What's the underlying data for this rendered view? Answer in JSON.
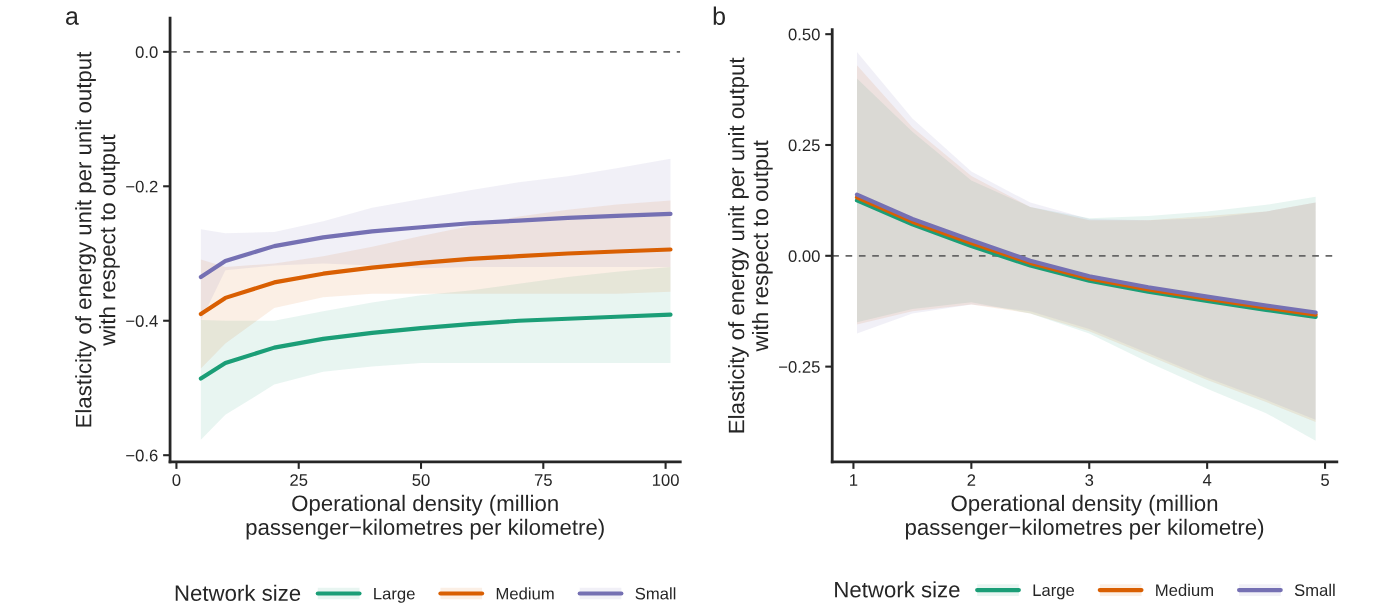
{
  "chart_data": [
    {
      "type": "line",
      "annotations": [
        "a"
      ],
      "xlabel": "Operational density (million\npassenger−kilometres per kilometre)",
      "ylabel": "Elasticity of energy unit per unit output\nwith respect to output",
      "x": [
        5,
        10,
        20,
        30,
        40,
        50,
        60,
        70,
        80,
        90,
        101
      ],
      "series": [
        {
          "name": "Large",
          "color": "#1b9e77",
          "values": [
            -0.486,
            -0.463,
            -0.44,
            -0.427,
            -0.418,
            -0.411,
            -0.405,
            -0.4,
            -0.397,
            -0.394,
            -0.391
          ],
          "lower": [
            -0.577,
            -0.54,
            -0.495,
            -0.476,
            -0.468,
            -0.463,
            -0.463,
            -0.463,
            -0.463,
            -0.463,
            -0.463
          ],
          "upper": [
            -0.399,
            -0.4,
            -0.4,
            -0.386,
            -0.373,
            -0.362,
            -0.355,
            -0.345,
            -0.335,
            -0.327,
            -0.32
          ]
        },
        {
          "name": "Medium",
          "color": "#d95f02",
          "values": [
            -0.39,
            -0.366,
            -0.343,
            -0.33,
            -0.321,
            -0.314,
            -0.308,
            -0.304,
            -0.3,
            -0.297,
            -0.294
          ],
          "lower": [
            -0.471,
            -0.434,
            -0.381,
            -0.365,
            -0.36,
            -0.36,
            -0.36,
            -0.36,
            -0.36,
            -0.36,
            -0.357
          ],
          "upper": [
            -0.309,
            -0.32,
            -0.315,
            -0.304,
            -0.29,
            -0.274,
            -0.259,
            -0.245,
            -0.235,
            -0.227,
            -0.221
          ]
        },
        {
          "name": "Small",
          "color": "#7570b3",
          "values": [
            -0.335,
            -0.311,
            -0.289,
            -0.276,
            -0.267,
            -0.261,
            -0.255,
            -0.251,
            -0.247,
            -0.244,
            -0.241
          ],
          "lower": [
            -0.4,
            -0.325,
            -0.318,
            -0.315,
            -0.318,
            -0.322,
            -0.32,
            -0.32,
            -0.32,
            -0.32,
            -0.32
          ],
          "upper": [
            -0.264,
            -0.27,
            -0.268,
            -0.252,
            -0.232,
            -0.219,
            -0.206,
            -0.194,
            -0.185,
            -0.173,
            -0.159
          ]
        }
      ],
      "xlim": [
        -1.3,
        103
      ],
      "ylim": [
        -0.61,
        0.05
      ],
      "xticks": [
        0,
        25,
        50,
        75,
        100
      ],
      "yticks": [
        {
          "value": 0,
          "label": "0.0"
        },
        {
          "value": -0.2,
          "label": "−0.2"
        },
        {
          "value": -0.4,
          "label": "−0.4"
        },
        {
          "value": -0.6,
          "label": "−0.6"
        }
      ],
      "ref_lines": [
        {
          "axis": "y",
          "value": 0,
          "color": "#666666",
          "line_style": "dashed"
        }
      ],
      "legend": "bottom",
      "legend_title": "Network size"
    },
    {
      "type": "line",
      "annotations": [
        "b"
      ],
      "xlabel": "Operational density (million\npassenger−kilometres per kilometre)",
      "ylabel": "Elasticity of energy unit per unit output\nwith respect to output",
      "x": [
        1.03,
        1.5,
        2,
        2.5,
        3,
        3.5,
        4,
        4.5,
        4.92
      ],
      "series": [
        {
          "name": "Large",
          "color": "#1b9e77",
          "values": [
            0.125,
            0.071,
            0.022,
            -0.022,
            -0.056,
            -0.081,
            -0.102,
            -0.122,
            -0.138
          ],
          "lower": [
            -0.15,
            -0.12,
            -0.105,
            -0.13,
            -0.175,
            -0.24,
            -0.3,
            -0.355,
            -0.417
          ],
          "upper": [
            0.4,
            0.28,
            0.17,
            0.11,
            0.085,
            0.09,
            0.1,
            0.115,
            0.133
          ]
        },
        {
          "name": "Medium",
          "color": "#d95f02",
          "values": [
            0.132,
            0.077,
            0.029,
            -0.016,
            -0.051,
            -0.076,
            -0.097,
            -0.117,
            -0.133
          ],
          "lower": [
            -0.155,
            -0.125,
            -0.11,
            -0.13,
            -0.17,
            -0.225,
            -0.28,
            -0.33,
            -0.375
          ],
          "upper": [
            0.43,
            0.29,
            0.18,
            0.11,
            0.08,
            0.08,
            0.09,
            0.1,
            0.12
          ]
        },
        {
          "name": "Small",
          "color": "#7570b3",
          "values": [
            0.138,
            0.083,
            0.035,
            -0.011,
            -0.046,
            -0.071,
            -0.092,
            -0.112,
            -0.128
          ],
          "lower": [
            -0.175,
            -0.13,
            -0.11,
            -0.125,
            -0.165,
            -0.22,
            -0.275,
            -0.325,
            -0.37
          ],
          "upper": [
            0.46,
            0.31,
            0.19,
            0.12,
            0.083,
            0.08,
            0.085,
            0.1,
            0.12
          ]
        }
      ],
      "xlim": [
        0.82,
        5.1
      ],
      "ylim": [
        -0.465,
        0.51
      ],
      "xticks": [
        1,
        2,
        3,
        4,
        5
      ],
      "yticks": [
        {
          "value": 0.5,
          "label": "0.50"
        },
        {
          "value": 0.25,
          "label": "0.25"
        },
        {
          "value": 0,
          "label": "0.00"
        },
        {
          "value": -0.25,
          "label": "−0.25"
        }
      ],
      "ref_lines": [
        {
          "axis": "y",
          "value": 0,
          "color": "#666666",
          "line_style": "dashed"
        }
      ],
      "legend": "bottom",
      "legend_title": "Network size"
    }
  ]
}
